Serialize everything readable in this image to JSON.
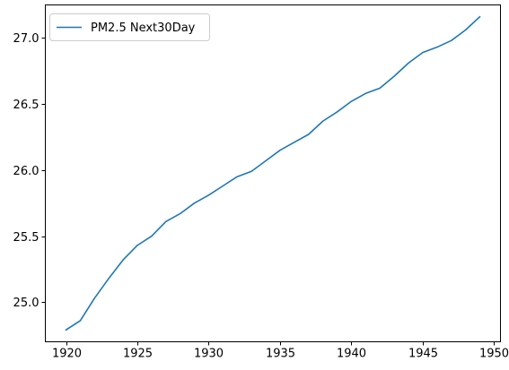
{
  "chart_data": {
    "type": "line",
    "title": "",
    "xlabel": "",
    "ylabel": "",
    "xlim": [
      1918.55,
      1950.45
    ],
    "ylim": [
      24.7,
      27.25
    ],
    "grid": false,
    "legend_placement": "upper-left",
    "x_ticks": [
      1920,
      1925,
      1930,
      1935,
      1940,
      1945,
      1950
    ],
    "y_ticks": [
      25.0,
      25.5,
      26.0,
      26.5,
      27.0
    ],
    "series": [
      {
        "name": "PM2.5 Next30Day",
        "color": "#1f77b4",
        "x": [
          1920,
          1921,
          1922,
          1923,
          1924,
          1925,
          1926,
          1927,
          1928,
          1929,
          1930,
          1931,
          1932,
          1933,
          1934,
          1935,
          1936,
          1937,
          1938,
          1939,
          1940,
          1941,
          1942,
          1943,
          1944,
          1945,
          1946,
          1947,
          1948,
          1949
        ],
        "y": [
          24.79,
          24.86,
          25.03,
          25.18,
          25.32,
          25.43,
          25.5,
          25.61,
          25.67,
          25.75,
          25.81,
          25.88,
          25.95,
          25.99,
          26.07,
          26.15,
          26.21,
          26.27,
          26.37,
          26.44,
          26.52,
          26.58,
          26.62,
          26.71,
          26.81,
          26.89,
          26.93,
          26.98,
          27.06,
          27.16
        ]
      }
    ]
  }
}
